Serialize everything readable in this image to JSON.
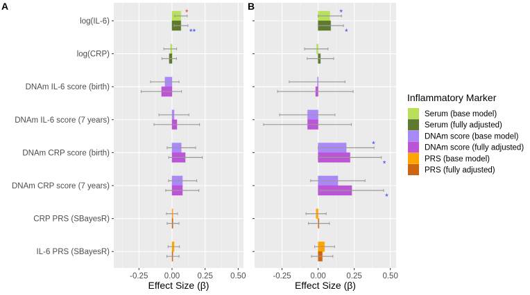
{
  "chart_data": {
    "type": "bar",
    "orientation": "horizontal",
    "categories": [
      "log(IL-6)",
      "log(CRP)",
      "DNAm IL-6 score (birth)",
      "DNAm IL-6 score (7 years)",
      "DNAm CRP score (birth)",
      "DNAm CRP score (7 years)",
      "CRP PRS (SBayesR)",
      "IL-6 PRS (SBayesR)"
    ],
    "xlabel": "Effect Size (β)",
    "xlim": [
      -0.44,
      0.54
    ],
    "xticks": [
      -0.25,
      0.0,
      0.25,
      0.5
    ],
    "xtick_labels": [
      "-0.25",
      "0.00",
      "0.25",
      "0.50"
    ],
    "grid": true,
    "legend": {
      "title": "Inflammatory Marker",
      "placement": "right",
      "entries": [
        {
          "label": "Serum (base model)",
          "color": "#b9e05b"
        },
        {
          "label": "Serum (fully adjusted)",
          "color": "#5f7a2f"
        },
        {
          "label": "DNAm score (base model)",
          "color": "#aa88f7"
        },
        {
          "label": "DNAm score (fully adjusted)",
          "color": "#bb55d6"
        },
        {
          "label": "PRS (base model)",
          "color": "#ffa500"
        },
        {
          "label": "PRS (fully adjusted)",
          "color": "#cc6611"
        }
      ]
    },
    "star_colors": {
      "red": "#f03c32",
      "blue": "#3344ee"
    },
    "panels": [
      {
        "label": "A",
        "show_category_labels": true,
        "series": [
          {
            "category": "log(IL-6)",
            "type": "Serum",
            "base": {
              "value": 0.067,
              "ci": [
                0.019,
                0.115
              ],
              "sig": "*",
              "sig_color": "red"
            },
            "full": {
              "value": 0.067,
              "ci": [
                0.016,
                0.12
              ],
              "sig": "**",
              "sig_color": "blue"
            }
          },
          {
            "category": "log(CRP)",
            "type": "Serum",
            "base": {
              "value": -0.011,
              "ci": [
                -0.062,
                0.035
              ]
            },
            "full": {
              "value": -0.021,
              "ci": [
                -0.076,
                0.034
              ]
            }
          },
          {
            "category": "DNAm IL-6 score (birth)",
            "type": "DNAm",
            "base": {
              "value": -0.053,
              "ci": [
                -0.162,
                0.053
              ]
            },
            "full": {
              "value": -0.079,
              "ci": [
                -0.233,
                0.072
              ]
            }
          },
          {
            "category": "DNAm IL-6 score (7 years)",
            "type": "DNAm",
            "base": {
              "value": 0.016,
              "ci": [
                -0.099,
                0.127
              ]
            },
            "full": {
              "value": 0.037,
              "ci": [
                -0.136,
                0.208
              ]
            }
          },
          {
            "category": "DNAm CRP score (birth)",
            "type": "DNAm",
            "base": {
              "value": 0.07,
              "ci": [
                -0.037,
                0.178
              ]
            },
            "full": {
              "value": 0.1,
              "ci": [
                -0.025,
                0.229
              ]
            }
          },
          {
            "category": "DNAm CRP score (7 years)",
            "type": "DNAm",
            "base": {
              "value": 0.079,
              "ci": [
                -0.026,
                0.187
              ]
            },
            "full": {
              "value": 0.079,
              "ci": [
                -0.048,
                0.203
              ]
            }
          },
          {
            "category": "CRP PRS (SBayesR)",
            "type": "PRS",
            "base": {
              "value": 0.0,
              "ci": [
                -0.042,
                0.042
              ]
            },
            "full": {
              "value": 0.007,
              "ci": [
                -0.037,
                0.053
              ]
            }
          },
          {
            "category": "IL-6 PRS (SBayesR)",
            "type": "PRS",
            "base": {
              "value": 0.016,
              "ci": [
                -0.03,
                0.056
              ]
            },
            "full": {
              "value": 0.005,
              "ci": [
                -0.039,
                0.053
              ]
            }
          }
        ]
      },
      {
        "label": "B",
        "show_category_labels": false,
        "series": [
          {
            "category": "log(IL-6)",
            "type": "Serum",
            "base": {
              "value": 0.081,
              "ci": [
                0.0,
                0.162
              ],
              "sig": "*",
              "sig_color": "blue"
            },
            "full": {
              "value": 0.087,
              "ci": [
                0.0,
                0.175
              ],
              "sig": "*",
              "sig_color": "blue"
            }
          },
          {
            "category": "log(CRP)",
            "type": "Serum",
            "base": {
              "value": -0.011,
              "ci": [
                -0.094,
                0.068
              ]
            },
            "full": {
              "value": 0.016,
              "ci": [
                -0.076,
                0.108
              ]
            }
          },
          {
            "category": "DNAm IL-6 score (birth)",
            "type": "DNAm",
            "base": {
              "value": -0.005,
              "ci": [
                -0.2,
                0.186
              ]
            },
            "full": {
              "value": -0.017,
              "ci": [
                -0.281,
                0.243
              ]
            }
          },
          {
            "category": "DNAm IL-6 score (7 years)",
            "type": "DNAm",
            "base": {
              "value": -0.073,
              "ci": [
                -0.267,
                0.117
              ]
            },
            "full": {
              "value": -0.073,
              "ci": [
                -0.378,
                0.23
              ]
            }
          },
          {
            "category": "DNAm CRP score (birth)",
            "type": "DNAm",
            "base": {
              "value": 0.195,
              "ci": [
                0.0,
                0.387
              ],
              "sig": "*",
              "sig_color": "blue"
            },
            "full": {
              "value": 0.221,
              "ci": [
                0.0,
                0.438
              ],
              "sig": "*",
              "sig_color": "blue"
            }
          },
          {
            "category": "DNAm CRP score (7 years)",
            "type": "DNAm",
            "base": {
              "value": 0.137,
              "ci": [
                -0.052,
                0.325
              ]
            },
            "full": {
              "value": 0.233,
              "ci": [
                0.013,
                0.454
              ],
              "sig": "*",
              "sig_color": "blue"
            }
          },
          {
            "category": "CRP PRS (SBayesR)",
            "type": "PRS",
            "base": {
              "value": -0.014,
              "ci": [
                -0.084,
                0.056
              ]
            },
            "full": {
              "value": 0.005,
              "ci": [
                -0.067,
                0.078
              ]
            }
          },
          {
            "category": "IL-6 PRS (SBayesR)",
            "type": "PRS",
            "base": {
              "value": 0.044,
              "ci": [
                -0.024,
                0.114
              ]
            },
            "full": {
              "value": 0.029,
              "ci": [
                -0.046,
                0.102
              ]
            }
          }
        ]
      }
    ]
  }
}
